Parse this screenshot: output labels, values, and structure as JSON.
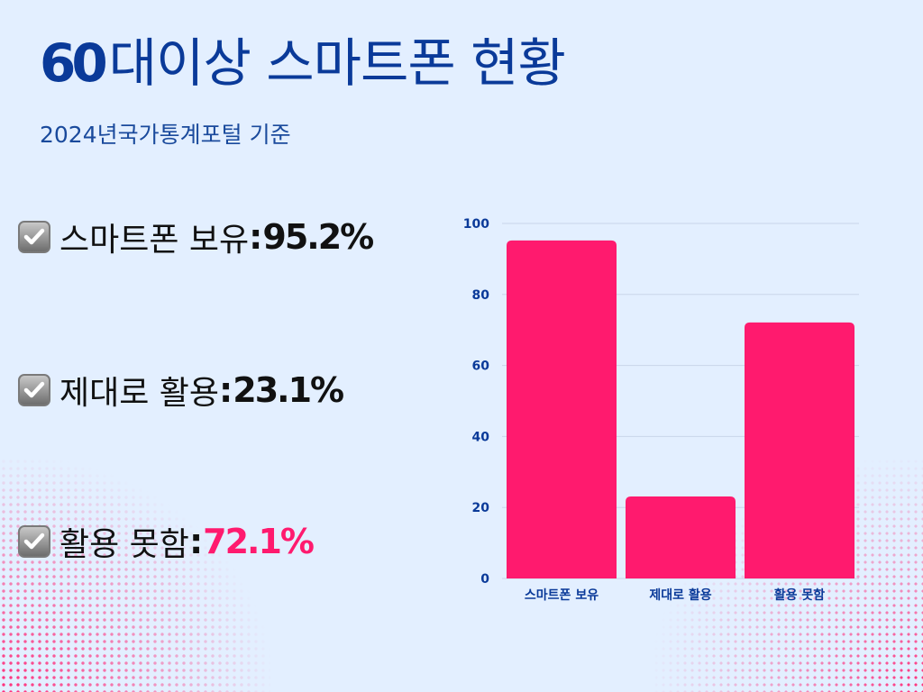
{
  "title": {
    "number": "60",
    "text": "대이상 스마트폰 현황"
  },
  "subtitle": "2024년국가통계포털 기준",
  "stats": [
    {
      "label": "스마트폰 보유",
      "separator": ":",
      "value": "95.2%"
    },
    {
      "label": "제대로 활용",
      "separator": ":",
      "value": "23.1%"
    },
    {
      "label": "활용 못함",
      "separator": ":",
      "value": "72.1%"
    }
  ],
  "colors": {
    "title": "#0a3a99",
    "bar": "#ff1a6e",
    "highlight_value": "#ff1a6e",
    "axis_text": "#0a3a99",
    "background": "#e3efff"
  },
  "icons": {
    "stat_bullet": "checkbox-checked-icon"
  },
  "chart_data": {
    "type": "bar",
    "categories": [
      "스마트폰 보유",
      "제대로 활용",
      "활용 못함"
    ],
    "values": [
      95.2,
      23.1,
      72.1
    ],
    "ylim": [
      0,
      100
    ],
    "yticks": [
      0,
      20,
      40,
      60,
      80,
      100
    ],
    "grid": true,
    "xlabel": "",
    "ylabel": ""
  }
}
